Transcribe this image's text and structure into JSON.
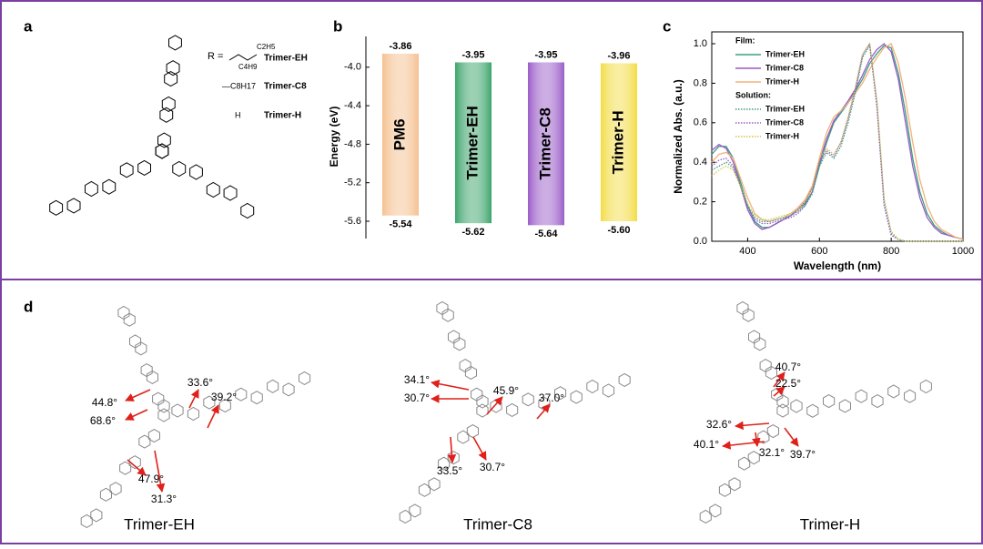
{
  "panel_labels": [
    "a",
    "b",
    "c",
    "d"
  ],
  "structure": {
    "r_label": "R =",
    "substituents": [
      {
        "labels": [
          "C2H5",
          "C4H9"
        ],
        "name": "Trimer-EH"
      },
      {
        "labels": [
          "—C8H17"
        ],
        "name": "Trimer-C8"
      },
      {
        "labels": [
          "H"
        ],
        "name": "Trimer-H"
      }
    ]
  },
  "chart_data": [
    {
      "type": "energy_levels",
      "ylabel": "Energy (eV)",
      "categories": [
        "PM6",
        "Trimer-EH",
        "Trimer-C8",
        "Trimer-H"
      ],
      "colors": [
        "#f5c08e",
        "#3aa36a",
        "#9a5cc8",
        "#f3dc45"
      ],
      "lumo": {
        "values": [
          -3.86,
          -3.95,
          -3.95,
          -3.96
        ]
      },
      "homo": {
        "values": [
          -5.54,
          -5.62,
          -5.64,
          -5.6
        ],
        "value_labels": [
          "-5.54",
          "-5.62",
          "-5.64",
          "-5.60"
        ]
      },
      "ylim": [
        -5.78,
        -3.68
      ],
      "yticks": [
        {
          "value": -4,
          "label": "-4.0"
        },
        -4.4,
        -4.8,
        -5.2,
        -5.6
      ]
    },
    {
      "type": "line",
      "xlabel": "Wavelength (nm)",
      "ylabel": "Normalized Abs. (a.u.)",
      "x": [
        300,
        320,
        340,
        360,
        380,
        400,
        420,
        440,
        460,
        480,
        500,
        520,
        540,
        560,
        580,
        600,
        620,
        640,
        660,
        680,
        700,
        720,
        740,
        760,
        780,
        800,
        820,
        840,
        860,
        880,
        900,
        920,
        940,
        960,
        980,
        1000
      ],
      "series_groups": [
        {
          "title": "Film:",
          "line_style": "solid",
          "series": [
            {
              "name": "Trimer-EH",
              "color": "#3a9f80",
              "values": [
                0.44,
                0.48,
                0.48,
                0.42,
                0.3,
                0.18,
                0.1,
                0.07,
                0.07,
                0.09,
                0.11,
                0.13,
                0.16,
                0.19,
                0.25,
                0.38,
                0.5,
                0.6,
                0.65,
                0.7,
                0.76,
                0.82,
                0.9,
                0.95,
                0.99,
                0.98,
                0.85,
                0.65,
                0.42,
                0.25,
                0.14,
                0.08,
                0.05,
                0.03,
                0.02,
                0.01
              ]
            },
            {
              "name": "Trimer-C8",
              "color": "#9a5cc8",
              "values": [
                0.46,
                0.49,
                0.47,
                0.4,
                0.28,
                0.16,
                0.09,
                0.06,
                0.07,
                0.09,
                0.11,
                0.13,
                0.16,
                0.2,
                0.27,
                0.4,
                0.52,
                0.61,
                0.66,
                0.71,
                0.77,
                0.84,
                0.92,
                0.97,
                1.0,
                0.96,
                0.82,
                0.6,
                0.38,
                0.22,
                0.12,
                0.07,
                0.04,
                0.03,
                0.02,
                0.01
              ]
            },
            {
              "name": "Trimer-H",
              "color": "#f2b27a",
              "values": [
                0.4,
                0.44,
                0.45,
                0.42,
                0.32,
                0.22,
                0.14,
                0.11,
                0.1,
                0.11,
                0.12,
                0.14,
                0.17,
                0.21,
                0.28,
                0.42,
                0.55,
                0.63,
                0.66,
                0.7,
                0.75,
                0.8,
                0.87,
                0.93,
                0.98,
                1.0,
                0.9,
                0.72,
                0.5,
                0.31,
                0.18,
                0.1,
                0.06,
                0.04,
                0.02,
                0.01
              ]
            }
          ]
        },
        {
          "title": "Solution:",
          "line_style": "dotted",
          "series": [
            {
              "name": "Trimer-EH",
              "color": "#3a9f80",
              "values": [
                0.36,
                0.38,
                0.4,
                0.37,
                0.28,
                0.18,
                0.12,
                0.1,
                0.1,
                0.11,
                0.12,
                0.13,
                0.15,
                0.18,
                0.24,
                0.38,
                0.45,
                0.42,
                0.48,
                0.6,
                0.75,
                0.93,
                0.99,
                0.7,
                0.2,
                0.04,
                0.01,
                0,
                0,
                0,
                0,
                0,
                0,
                0,
                0,
                0
              ]
            },
            {
              "name": "Trimer-C8",
              "color": "#9a5cc8",
              "values": [
                0.38,
                0.41,
                0.42,
                0.38,
                0.28,
                0.17,
                0.11,
                0.09,
                0.09,
                0.1,
                0.11,
                0.12,
                0.14,
                0.18,
                0.25,
                0.4,
                0.46,
                0.43,
                0.5,
                0.62,
                0.77,
                0.94,
                1.0,
                0.68,
                0.18,
                0.03,
                0.01,
                0,
                0,
                0,
                0,
                0,
                0,
                0,
                0,
                0
              ]
            },
            {
              "name": "Trimer-H",
              "color": "#d8c24a",
              "values": [
                0.33,
                0.36,
                0.38,
                0.36,
                0.28,
                0.19,
                0.13,
                0.11,
                0.11,
                0.12,
                0.13,
                0.14,
                0.16,
                0.2,
                0.27,
                0.42,
                0.47,
                0.44,
                0.5,
                0.63,
                0.78,
                0.95,
                1.0,
                0.72,
                0.22,
                0.05,
                0.01,
                0,
                0,
                0,
                0,
                0,
                0,
                0,
                0,
                0
              ]
            }
          ]
        }
      ],
      "xlim": [
        300,
        1000
      ],
      "xticks": [
        400,
        600,
        800,
        1000
      ],
      "ylim": [
        0,
        1.06
      ],
      "yticks": [
        {
          "value": 0,
          "label": "0.0"
        },
        0.2,
        0.4,
        0.6,
        0.8,
        {
          "value": 1,
          "label": "1.0"
        }
      ]
    }
  ],
  "conformers": [
    {
      "name": "Trimer-EH",
      "angles": [
        "33.6°",
        "39.2°",
        "44.8°",
        "68.6°",
        "47.9°",
        "31.3°"
      ]
    },
    {
      "name": "Trimer-C8",
      "angles": [
        "34.1°",
        "30.7°",
        "45.9°",
        "37.0°",
        "33.5°",
        "30.7°"
      ]
    },
    {
      "name": "Trimer-H",
      "angles": [
        "40.7°",
        "22.5°",
        "32.6°",
        "40.1°",
        "32.1°",
        "39.7°"
      ]
    }
  ]
}
